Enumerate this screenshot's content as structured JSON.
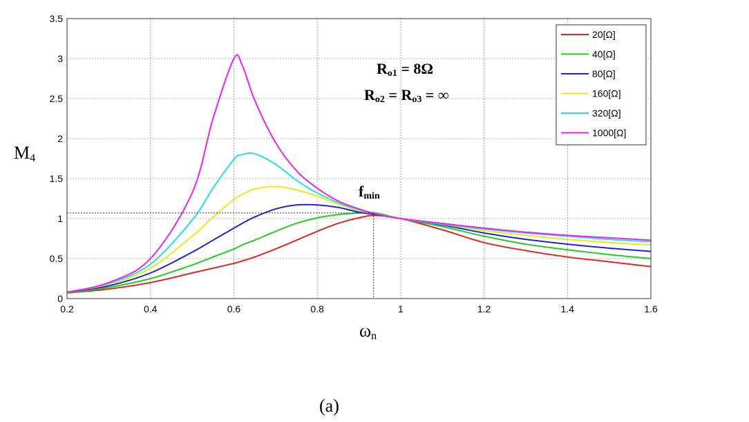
{
  "chart_data": {
    "type": "line",
    "xlabel_main": "ω",
    "xlabel_sub": "n",
    "ylabel_main": "M",
    "ylabel_sub": "4",
    "xlim": [
      0.2,
      1.6
    ],
    "ylim": [
      0,
      3.5
    ],
    "xticks": [
      "0.2",
      "0.4",
      "0.6",
      "0.8",
      "1",
      "1.2",
      "1.4",
      "1.6"
    ],
    "yticks": [
      "0",
      "0.5",
      "1",
      "1.5",
      "2",
      "2.5",
      "3",
      "3.5"
    ],
    "xtick_values": [
      0.2,
      0.4,
      0.6,
      0.8,
      1.0,
      1.2,
      1.4,
      1.6
    ],
    "ytick_values": [
      0,
      0.5,
      1,
      1.5,
      2,
      2.5,
      3,
      3.5
    ],
    "grid": true,
    "legend_position": "top-right",
    "annotations": {
      "line1_main": "R",
      "line1_sub": "o1",
      "line1_rest": " = 8Ω",
      "line2_a_main": "R",
      "line2_a_sub": "o2",
      "line2_mid": " = ",
      "line2_b_main": "R",
      "line2_b_sub": "o3",
      "line2_rest": " = ∞",
      "fmin_main": "f",
      "fmin_sub": "min",
      "fmin_x": 0.935,
      "fmin_y": 1.07
    },
    "caption": "(a)",
    "x": [
      0.2,
      0.3,
      0.4,
      0.5,
      0.55,
      0.6,
      0.62,
      0.65,
      0.7,
      0.75,
      0.8,
      0.85,
      0.9,
      0.94,
      1.0,
      1.1,
      1.2,
      1.3,
      1.4,
      1.5,
      1.6
    ],
    "series": [
      {
        "name": "20[Ω]",
        "color": "#e8231f",
        "values": [
          0.07,
          0.12,
          0.2,
          0.32,
          0.38,
          0.44,
          0.47,
          0.52,
          0.62,
          0.73,
          0.84,
          0.94,
          1.01,
          1.04,
          1.0,
          0.86,
          0.7,
          0.6,
          0.52,
          0.46,
          0.4
        ]
      },
      {
        "name": "40[Ω]",
        "color": "#22cc22",
        "values": [
          0.07,
          0.14,
          0.25,
          0.42,
          0.52,
          0.62,
          0.67,
          0.73,
          0.84,
          0.94,
          1.01,
          1.05,
          1.07,
          1.07,
          1.0,
          0.9,
          0.78,
          0.68,
          0.61,
          0.55,
          0.5
        ]
      },
      {
        "name": "80[Ω]",
        "color": "#2222cc",
        "values": [
          0.08,
          0.16,
          0.32,
          0.58,
          0.73,
          0.88,
          0.94,
          1.02,
          1.12,
          1.17,
          1.17,
          1.14,
          1.08,
          1.05,
          1.0,
          0.92,
          0.82,
          0.74,
          0.68,
          0.63,
          0.59
        ]
      },
      {
        "name": "160[Ω]",
        "color": "#f0e61e",
        "values": [
          0.08,
          0.18,
          0.38,
          0.78,
          1.02,
          1.24,
          1.3,
          1.37,
          1.4,
          1.36,
          1.28,
          1.18,
          1.1,
          1.06,
          1.0,
          0.93,
          0.85,
          0.79,
          0.74,
          0.7,
          0.67
        ]
      },
      {
        "name": "320[Ω]",
        "color": "#22e0e8",
        "values": [
          0.08,
          0.19,
          0.43,
          0.98,
          1.38,
          1.74,
          1.8,
          1.81,
          1.68,
          1.48,
          1.32,
          1.2,
          1.11,
          1.06,
          1.0,
          0.93,
          0.87,
          0.82,
          0.78,
          0.74,
          0.71
        ]
      },
      {
        "name": "1000[Ω]",
        "color": "#ee22ee",
        "values": [
          0.08,
          0.2,
          0.5,
          1.32,
          2.25,
          3.0,
          2.92,
          2.48,
          1.95,
          1.6,
          1.38,
          1.22,
          1.12,
          1.06,
          1.0,
          0.94,
          0.88,
          0.83,
          0.79,
          0.76,
          0.73
        ]
      }
    ]
  }
}
